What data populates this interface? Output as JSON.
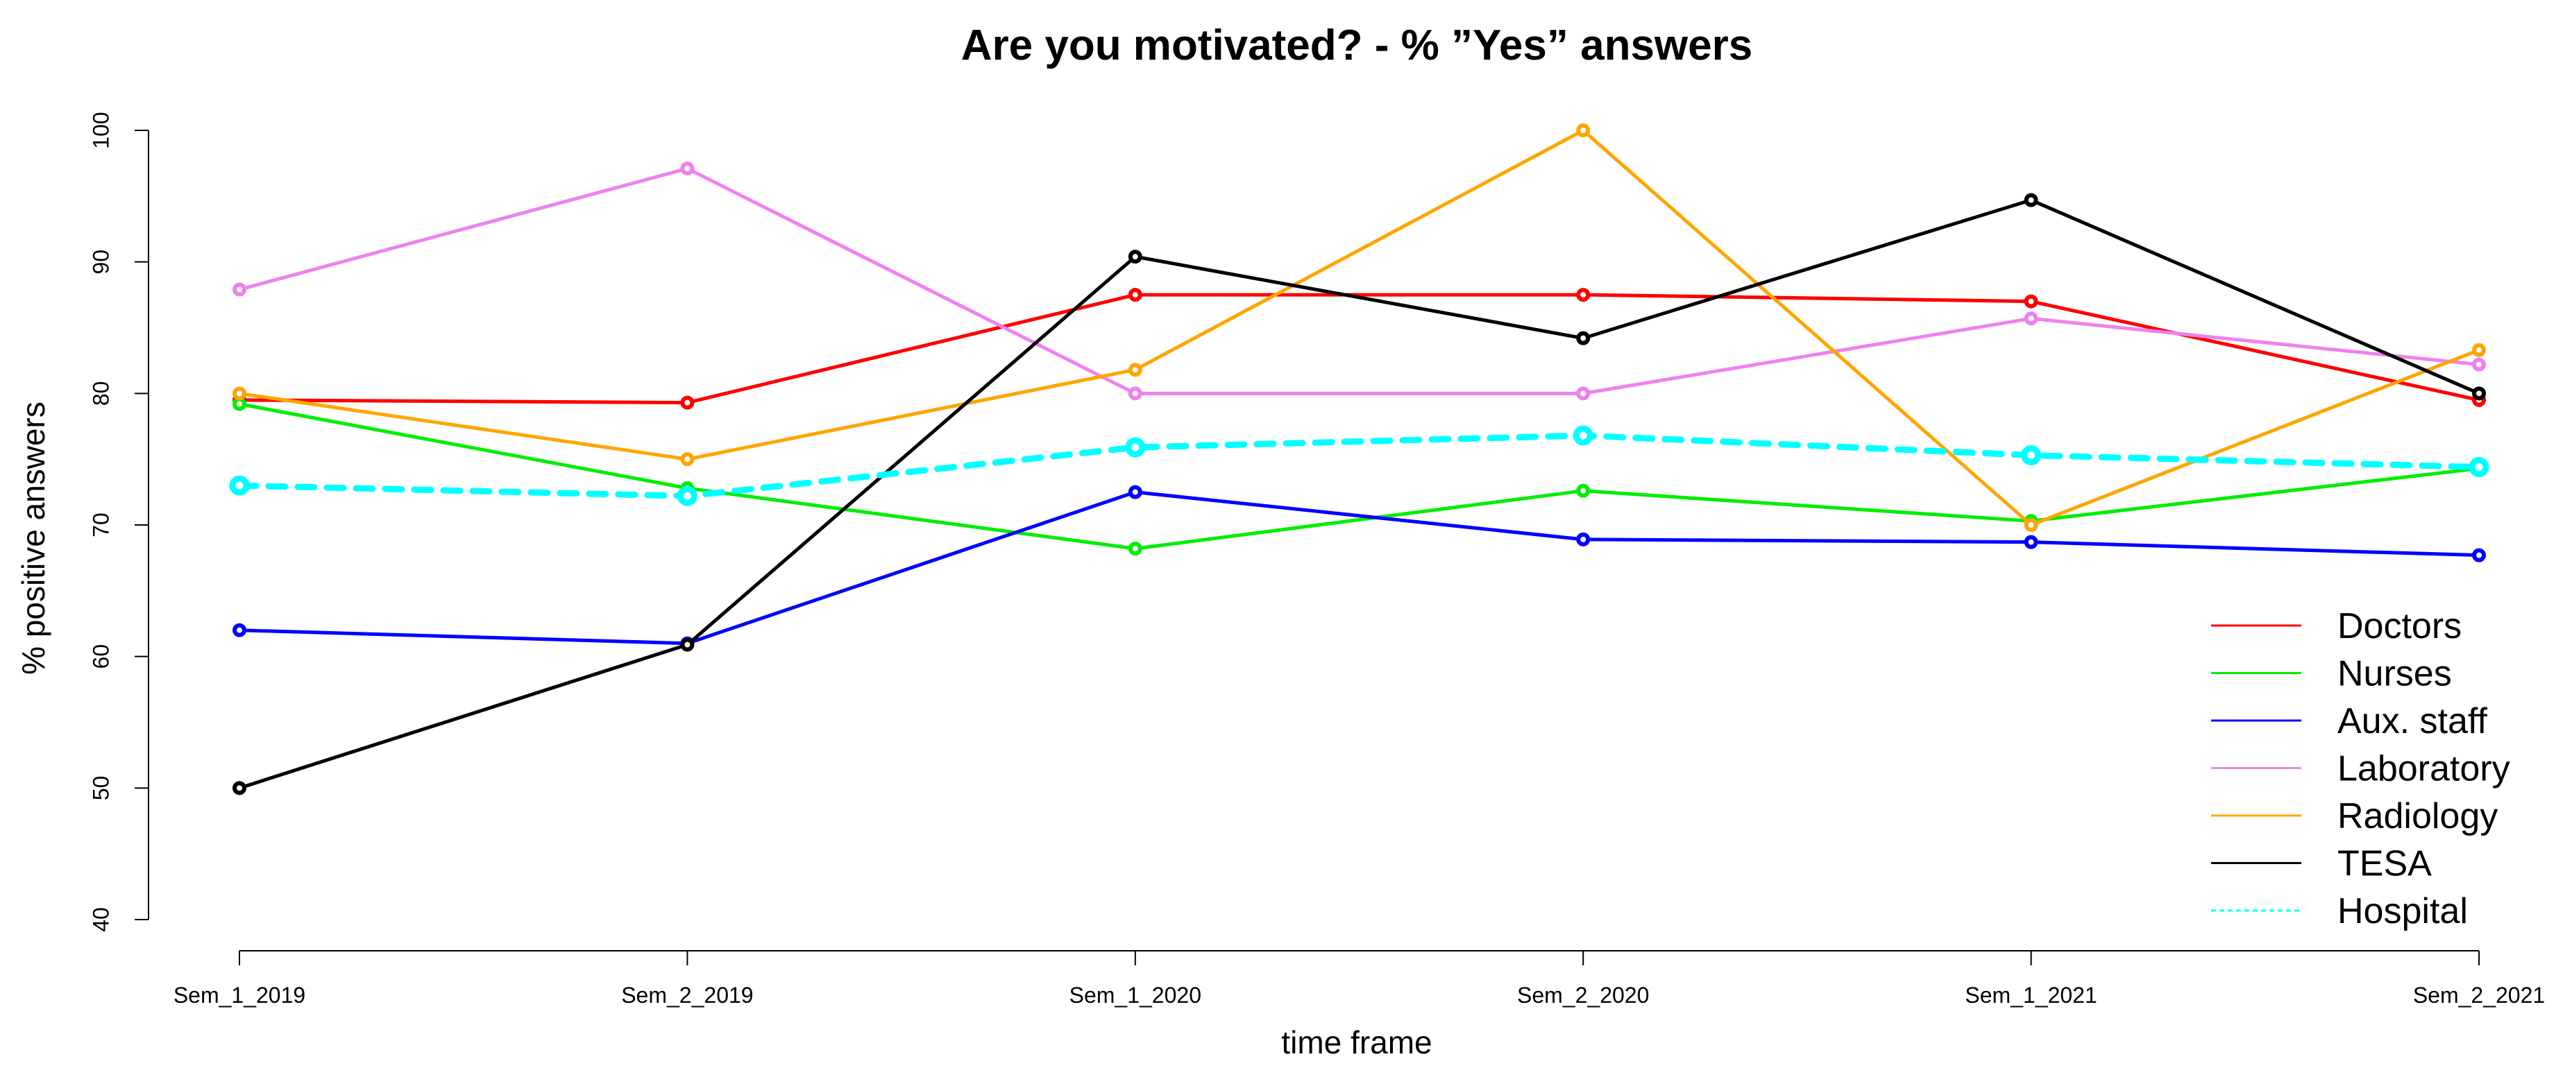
{
  "chart_data": {
    "type": "line",
    "title": "Are you motivated? - % ”Yes” answers",
    "xlabel": "time frame",
    "ylabel": "% positive answers",
    "categories": [
      "Sem_1_2019",
      "Sem_2_2019",
      "Sem_1_2020",
      "Sem_2_2020",
      "Sem_1_2021",
      "Sem_2_2021"
    ],
    "yticks": [
      40,
      50,
      60,
      70,
      80,
      90,
      100
    ],
    "ylim": [
      40,
      100
    ],
    "grid": false,
    "legend_position": "right",
    "series": [
      {
        "name": "Doctors",
        "color": "#ff0000",
        "dashed": false,
        "values": [
          79.5,
          79.3,
          87.5,
          87.5,
          87.0,
          79.5
        ]
      },
      {
        "name": "Nurses",
        "color": "#00ee00",
        "dashed": false,
        "values": [
          79.2,
          72.8,
          68.2,
          72.6,
          70.3,
          74.3
        ]
      },
      {
        "name": "Aux. staff",
        "color": "#0000ff",
        "dashed": false,
        "values": [
          62.0,
          61.0,
          72.5,
          68.9,
          68.7,
          67.7
        ]
      },
      {
        "name": "Laboratory",
        "color": "#ee82ee",
        "dashed": false,
        "values": [
          87.9,
          97.1,
          80.0,
          80.0,
          85.7,
          82.2
        ]
      },
      {
        "name": "Radiology",
        "color": "#ffa500",
        "dashed": false,
        "values": [
          80.0,
          75.0,
          81.8,
          100.0,
          70.0,
          83.3
        ]
      },
      {
        "name": "TESA",
        "color": "#000000",
        "dashed": false,
        "values": [
          50.0,
          60.9,
          90.4,
          84.2,
          94.7,
          80.0
        ]
      },
      {
        "name": "Hospital",
        "color": "#00ffff",
        "dashed": true,
        "values": [
          73.0,
          72.2,
          75.9,
          76.8,
          75.3,
          74.4
        ]
      }
    ]
  }
}
